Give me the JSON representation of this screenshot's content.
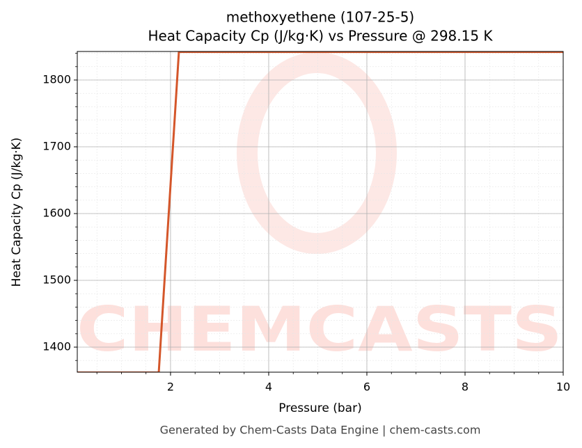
{
  "chart_data": {
    "type": "line",
    "title": "methoxyethene (107-25-5)",
    "subtitle": "Heat Capacity Cp (J/kg·K) vs Pressure @ 298.15 K",
    "x_label": "Pressure (bar)",
    "y_label": "Heat Capacity Cp (J/kg·K)",
    "watermark": "CHEMCASTS",
    "footer": "Generated by Chem-Casts Data Engine | chem-casts.com",
    "x": [
      0.1,
      1.76,
      2.17,
      10
    ],
    "series": [
      {
        "name": "Cp",
        "color": "#d4562a",
        "values": [
          1362,
          1362,
          1842,
          1842
        ]
      }
    ],
    "xlim": [
      0.1,
      10
    ],
    "ylim": [
      1362.5,
      1842.7
    ],
    "xticks": [
      2,
      4,
      6,
      8,
      10
    ],
    "yticks": [
      1400,
      1500,
      1600,
      1700,
      1800
    ],
    "grid": true
  }
}
